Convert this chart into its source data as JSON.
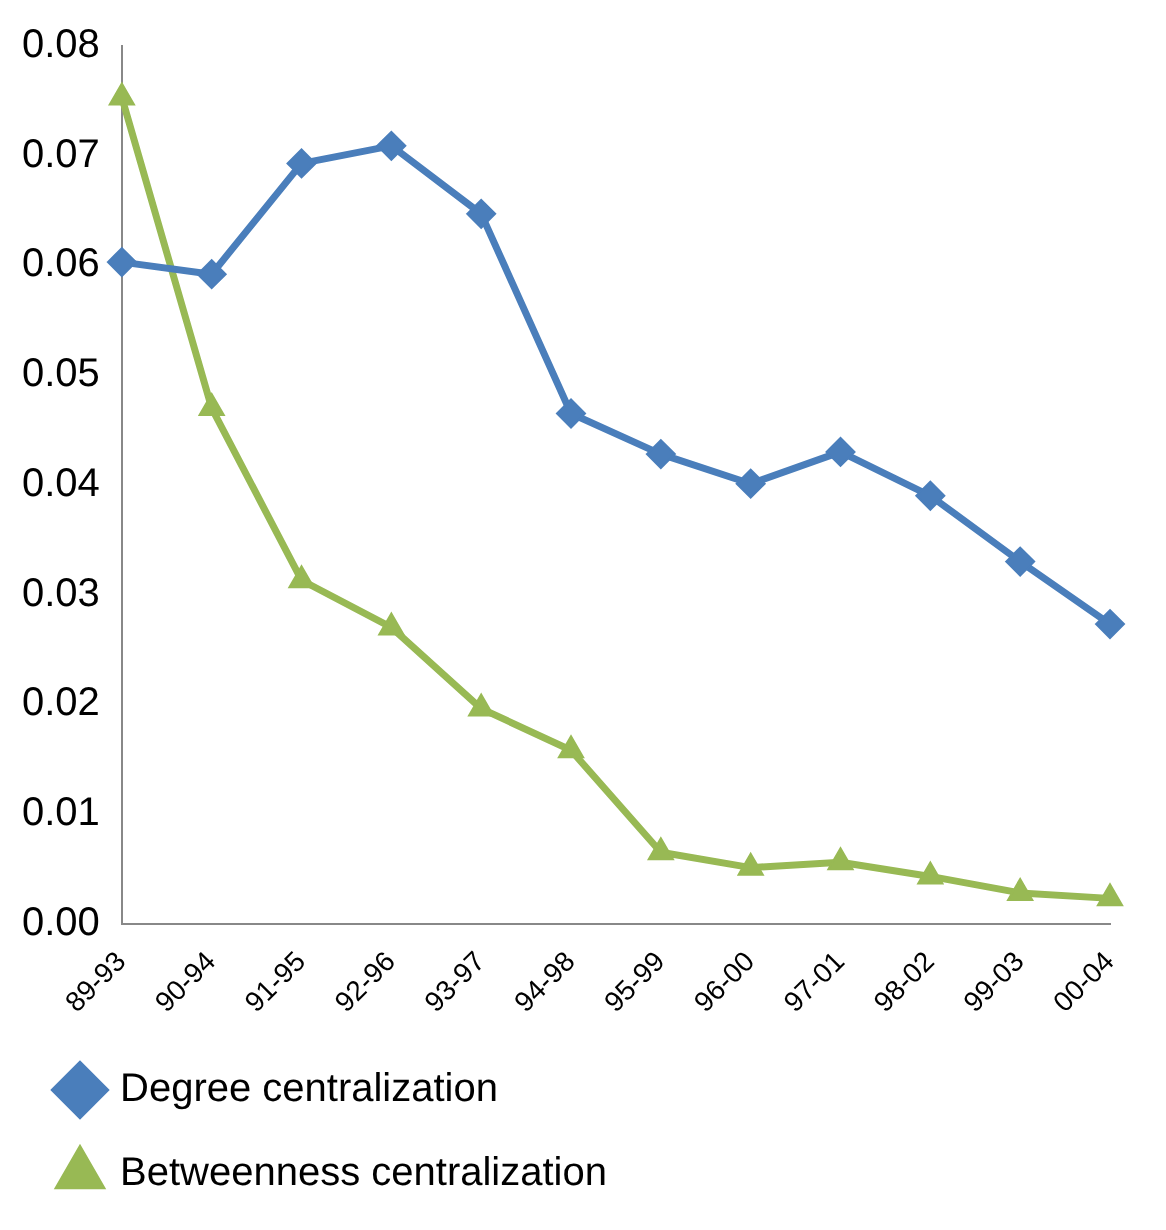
{
  "chart_data": {
    "type": "line",
    "categories": [
      "89-93",
      "90-94",
      "91-95",
      "92-96",
      "93-97",
      "94-98",
      "95-99",
      "96-00",
      "97-01",
      "98-02",
      "99-03",
      "00-04"
    ],
    "series": [
      {
        "name": "Degree centralization",
        "color": "#4a7ebb",
        "marker": "diamond",
        "values": [
          0.0603,
          0.0592,
          0.0693,
          0.0709,
          0.0647,
          0.0465,
          0.0428,
          0.0401,
          0.043,
          0.039,
          0.033,
          0.0273
        ]
      },
      {
        "name": "Betweenness centralization",
        "color": "#98b954",
        "marker": "triangle",
        "values": [
          0.0753,
          0.047,
          0.0313,
          0.027,
          0.0196,
          0.0158,
          0.0065,
          0.0051,
          0.0056,
          0.0043,
          0.0028,
          0.0023
        ]
      }
    ],
    "ylim": [
      0,
      0.08
    ],
    "yticks": [
      {
        "value": 0,
        "label": "0.00"
      },
      {
        "value": 0.01,
        "label": "0.01"
      },
      {
        "value": 0.02,
        "label": "0.02"
      },
      {
        "value": 0.03,
        "label": "0.03"
      },
      {
        "value": 0.04,
        "label": "0.04"
      },
      {
        "value": 0.05,
        "label": "0.05"
      },
      {
        "value": 0.06,
        "label": "0.06"
      },
      {
        "value": 0.07,
        "label": "0.07"
      },
      {
        "value": 0.08,
        "label": "0.08"
      }
    ],
    "grid": false,
    "legend": "bottom"
  }
}
